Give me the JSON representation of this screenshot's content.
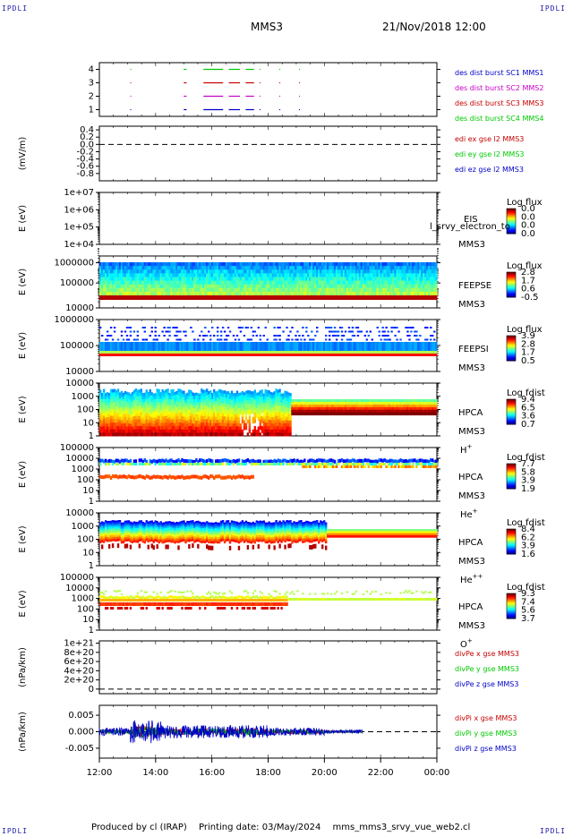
{
  "header": {
    "corner_left_top": "IPDLI",
    "corner_right_top": "IPDLI",
    "corner_left_bottom": "IPDLI",
    "corner_right_bottom": "IPDLI",
    "spacecraft": "MMS3",
    "datetime": "21/Nov/2018 12:00"
  },
  "footer": {
    "produced": "Produced by cl (IRAP)",
    "printing": "Printing date: 03/May/2024",
    "file": "mms_mms3_srvy_vue_web2.cl"
  },
  "colors": {
    "mms1": "#0000c8",
    "mms2": "#c800c8",
    "mms3": "#c80000",
    "mms4": "#00c800",
    "x": "#c80000",
    "y": "#00c800",
    "z": "#0000c8"
  },
  "chart_data": [
    {
      "id": "burst",
      "type": "scatter",
      "ylim": [
        0.5,
        4.5
      ],
      "yticks": [
        "1",
        "2",
        "3",
        "4"
      ],
      "series": [
        {
          "name": "des dist burst SC1 MMS1",
          "y": 1,
          "color": "#0000c8",
          "x": [
            [
              13.1,
              13.12
            ],
            [
              15.0,
              15.1
            ],
            [
              15.7,
              16.4
            ],
            [
              16.6,
              17.0
            ],
            [
              17.2,
              17.5
            ],
            [
              17.7,
              17.72
            ],
            [
              18.4,
              18.42
            ],
            [
              19.1,
              19.12
            ]
          ]
        },
        {
          "name": "des dist burst SC2 MMS2",
          "y": 2,
          "color": "#c800c8",
          "x": [
            [
              13.1,
              13.12
            ],
            [
              15.0,
              15.1
            ],
            [
              15.7,
              16.4
            ],
            [
              16.6,
              17.0
            ],
            [
              17.2,
              17.5
            ],
            [
              17.7,
              17.72
            ],
            [
              18.4,
              18.42
            ],
            [
              19.1,
              19.12
            ]
          ]
        },
        {
          "name": "des dist burst SC3 MMS3",
          "y": 3,
          "color": "#c80000",
          "x": [
            [
              13.1,
              13.12
            ],
            [
              15.0,
              15.1
            ],
            [
              15.7,
              16.4
            ],
            [
              16.6,
              17.0
            ],
            [
              17.2,
              17.5
            ],
            [
              17.7,
              17.72
            ],
            [
              18.4,
              18.42
            ],
            [
              19.1,
              19.12
            ]
          ]
        },
        {
          "name": "des dist burst SC4 MMS4",
          "y": 4,
          "color": "#00c800",
          "x": [
            [
              13.1,
              13.12
            ],
            [
              15.0,
              15.1
            ],
            [
              15.7,
              16.4
            ],
            [
              16.6,
              17.0
            ],
            [
              17.2,
              17.5
            ],
            [
              17.7,
              17.72
            ],
            [
              18.4,
              18.42
            ],
            [
              19.1,
              19.12
            ]
          ]
        }
      ]
    },
    {
      "id": "edi",
      "type": "line",
      "ylabel": "(mV/m)",
      "ylim": [
        -1.0,
        0.5
      ],
      "yticks": [
        "0.4",
        "0.2",
        "0.0",
        "-0.2",
        "-0.4",
        "-0.6",
        "-0.8"
      ],
      "series": [
        {
          "name": "edi ex gse l2 MMS3",
          "color": "#c80000"
        },
        {
          "name": "edi ey gse l2 MMS3",
          "color": "#00c800"
        },
        {
          "name": "edi ez gse l2 MMS3",
          "color": "#0000c8"
        }
      ]
    },
    {
      "id": "eis",
      "type": "heatmap",
      "ylabel": "E (eV)",
      "yticks": [
        "1e+07",
        "1e+06",
        "1e+05",
        "1e+04"
      ],
      "instrument": "EIS",
      "species": "l_srvy_electron_to",
      "sc": "MMS3",
      "cbar_title": "Log flux",
      "cbar_labels": [
        "0.0",
        "0.0",
        "0.0",
        "0.0"
      ]
    },
    {
      "id": "feepse",
      "type": "heatmap",
      "ylabel": "E (eV)",
      "yticks": [
        "1000000",
        "100000",
        "10000"
      ],
      "instrument": "FEEPSE",
      "sc": "MMS3",
      "cbar_title": "Log flux",
      "cbar_labels": [
        "2.8",
        "1.7",
        "0.6",
        "-0.5"
      ]
    },
    {
      "id": "feepsi",
      "type": "heatmap",
      "ylabel": "E (eV)",
      "yticks": [
        "1000000",
        "100000",
        "10000"
      ],
      "instrument": "FEEPSI",
      "sc": "MMS3",
      "cbar_title": "Log flux",
      "cbar_labels": [
        "3.9",
        "2.8",
        "1.7",
        "0.5"
      ]
    },
    {
      "id": "hpca_h",
      "type": "heatmap",
      "ylabel": "E (eV)",
      "yticks": [
        "10000",
        "1000",
        "100",
        "10",
        "1"
      ],
      "instrument": "HPCA",
      "sc": "MMS3",
      "species": "H",
      "species_sup": "+",
      "cbar_title": "Log fdist",
      "cbar_labels": [
        "9.4",
        "6.5",
        "3.6",
        "0.7"
      ]
    },
    {
      "id": "hpca_he1",
      "type": "heatmap",
      "ylabel": "E (eV)",
      "yticks": [
        "100000",
        "10000",
        "1000",
        "100",
        "10",
        "1"
      ],
      "instrument": "HPCA",
      "sc": "MMS3",
      "species": "He",
      "species_sup": "+",
      "cbar_title": "Log fdist",
      "cbar_labels": [
        "7.7",
        "5.8",
        "3.9",
        "1.9"
      ]
    },
    {
      "id": "hpca_he2",
      "type": "heatmap",
      "ylabel": "E (eV)",
      "yticks": [
        "10000",
        "1000",
        "100",
        "10",
        "1"
      ],
      "instrument": "HPCA",
      "sc": "MMS3",
      "species": "He",
      "species_sup": "++",
      "cbar_title": "Log fdist",
      "cbar_labels": [
        "8.4",
        "6.2",
        "3.9",
        "1.6"
      ]
    },
    {
      "id": "hpca_o",
      "type": "heatmap",
      "ylabel": "E (eV)",
      "yticks": [
        "100000",
        "10000",
        "1000",
        "100",
        "10",
        "1"
      ],
      "instrument": "HPCA",
      "sc": "MMS3",
      "species": "O",
      "species_sup": "+",
      "cbar_title": "Log fdist",
      "cbar_labels": [
        "9.3",
        "7.4",
        "5.6",
        "3.7"
      ]
    },
    {
      "id": "divpe",
      "type": "line",
      "ylabel": "(nPa/km)",
      "ylim": [
        -1e+20,
        1.05e+21
      ],
      "yticks": [
        "1e+21",
        "8e+20",
        "6e+20",
        "4e+20",
        "2e+20",
        "0"
      ],
      "series": [
        {
          "name": "divPe x gse MMS3",
          "color": "#c80000"
        },
        {
          "name": "divPe y gse MMS3",
          "color": "#00c800"
        },
        {
          "name": "divPe z gse MMS3",
          "color": "#0000c8"
        }
      ]
    },
    {
      "id": "divpi",
      "type": "line",
      "ylabel": "(nPa/km)",
      "ylim": [
        -0.008,
        0.008
      ],
      "yticks": [
        "0.005",
        "0.000",
        "-0.005"
      ],
      "series": [
        {
          "name": "divPi x gse MMS3",
          "color": "#c80000"
        },
        {
          "name": "divPi y gse MMS3",
          "color": "#00c800"
        },
        {
          "name": "divPi z gse MMS3",
          "color": "#0000c8"
        }
      ]
    }
  ],
  "xaxis": {
    "range_hours": [
      12,
      24
    ],
    "ticks": [
      "12:00",
      "14:00",
      "16:00",
      "18:00",
      "20:00",
      "22:00",
      "00:00"
    ]
  }
}
